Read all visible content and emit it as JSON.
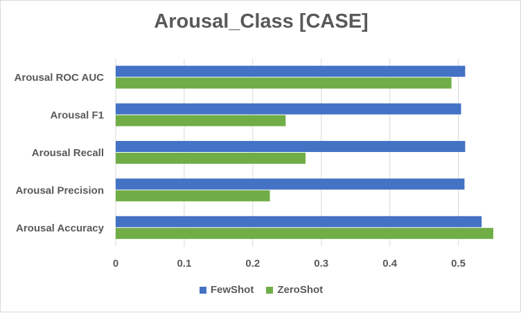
{
  "chart_data": {
    "type": "bar",
    "orientation": "horizontal",
    "title": "Arousal_Class [CASE]",
    "categories": [
      "Arousal ROC AUC",
      "Arousal F1",
      "Arousal Recall",
      "Arousal Precision",
      "Arousal Accuracy"
    ],
    "series": [
      {
        "name": "FewShot",
        "color": "#4472c4",
        "values": [
          0.51,
          0.504,
          0.51,
          0.509,
          0.534
        ]
      },
      {
        "name": "ZeroShot",
        "color": "#70ad47",
        "values": [
          0.49,
          0.248,
          0.277,
          0.225,
          0.551
        ]
      }
    ],
    "xlim": [
      0,
      0.55
    ],
    "xticks": [
      "0",
      "0.1",
      "0.2",
      "0.3",
      "0.4",
      "0.5"
    ],
    "xtick_values": [
      0,
      0.1,
      0.2,
      0.3,
      0.4,
      0.5
    ],
    "grid": "vertical",
    "legend_position": "bottom"
  }
}
